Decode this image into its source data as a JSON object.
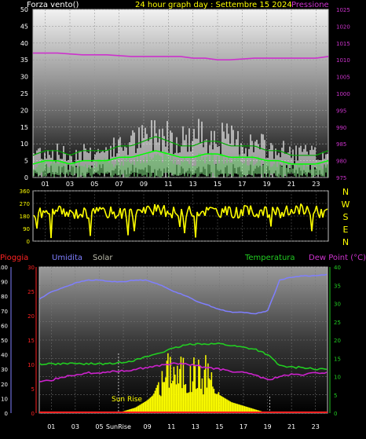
{
  "header": {
    "left_label": "Forza vento()",
    "title": "24 hour graph day : Settembre 15 2024",
    "right_label": "Pressione"
  },
  "panel2": {
    "compass_labels": [
      "N",
      "W",
      "S",
      "E",
      "N"
    ]
  },
  "panel3": {
    "legend": [
      "Pioggia",
      "Umidita",
      "Solar",
      "Temperatura",
      "Dew Point (°C)"
    ],
    "sunrise_label": "Sun Rise",
    "sunrise_hour_label": "SunRise"
  },
  "colors": {
    "wind_gust": "#ffffff",
    "wind_avg": "#00ff00",
    "pressure": "#cc33cc",
    "direction": "#ffff00",
    "humidity": "#7f7fff",
    "temperature": "#22cc22",
    "dewpoint": "#cc22cc",
    "solar": "#ffff00",
    "rain": "#ff2222"
  },
  "chart_data": [
    {
      "type": "line",
      "x_ticks": [
        "01",
        "03",
        "05",
        "07",
        "09",
        "11",
        "13",
        "15",
        "17",
        "19",
        "21",
        "23"
      ],
      "y_left_ticks": [
        "0",
        "5",
        "10",
        "15",
        "20",
        "25",
        "30",
        "35",
        "40",
        "45",
        "50"
      ],
      "y_right_ticks": [
        "975",
        "980",
        "985",
        "990",
        "995",
        "1000",
        "1005",
        "1010",
        "1015",
        "1020",
        "1025"
      ],
      "ylim_left": [
        0,
        50
      ],
      "ylim_right": [
        975,
        1025
      ],
      "xlim": [
        0,
        24
      ],
      "series": [
        {
          "name": "Forza vento()",
          "axis": "left",
          "kind": "gust",
          "x": [
            0,
            1,
            2,
            3,
            4,
            5,
            6,
            7,
            8,
            9,
            10,
            11,
            12,
            13,
            14,
            15,
            16,
            17,
            18,
            19,
            20,
            21,
            22,
            23,
            24
          ],
          "y": [
            9,
            10,
            9,
            8,
            10,
            9,
            10,
            11,
            13,
            14,
            17,
            16,
            14,
            15,
            16,
            15,
            14,
            13,
            12,
            11,
            10,
            9,
            9,
            8,
            9
          ]
        },
        {
          "name": "Forza vento()",
          "axis": "left",
          "kind": "avg",
          "x": [
            0,
            1,
            2,
            3,
            4,
            5,
            6,
            7,
            8,
            9,
            10,
            11,
            12,
            13,
            14,
            15,
            16,
            17,
            18,
            19,
            20,
            21,
            22,
            23,
            24
          ],
          "y": [
            4,
            5,
            5,
            4,
            5,
            5,
            5,
            6,
            6,
            7,
            8,
            7,
            6,
            6,
            7,
            7,
            6,
            6,
            6,
            5,
            5,
            4,
            4,
            4,
            5
          ]
        },
        {
          "name": "Pressione",
          "axis": "right",
          "x": [
            0,
            2,
            4,
            6,
            8,
            10,
            12,
            13,
            14,
            15,
            16,
            18,
            20,
            22,
            23,
            24
          ],
          "y": [
            1012,
            1012,
            1011.5,
            1011.5,
            1011,
            1011,
            1011,
            1010.5,
            1010.5,
            1010,
            1010,
            1010.5,
            1010.5,
            1010.5,
            1010.5,
            1011
          ]
        }
      ]
    },
    {
      "type": "scatter",
      "x_ticks": [
        "01",
        "03",
        "05",
        "07",
        "09",
        "11",
        "13",
        "15",
        "17",
        "19",
        "21",
        "23"
      ],
      "y_ticks": [
        "0",
        "90",
        "180",
        "270",
        "360"
      ],
      "ylim": [
        0,
        360
      ],
      "xlim": [
        0,
        24
      ],
      "series": [
        {
          "name": "direction",
          "x": [
            0,
            1,
            2,
            3,
            4,
            5,
            6,
            7,
            8,
            9,
            10,
            11,
            12,
            13,
            14,
            15,
            16,
            17,
            18,
            19,
            20,
            21,
            22,
            23,
            24
          ],
          "y": [
            190,
            200,
            210,
            195,
            205,
            200,
            210,
            200,
            205,
            215,
            220,
            210,
            200,
            210,
            220,
            215,
            205,
            210,
            215,
            205,
            200,
            215,
            230,
            215,
            200
          ]
        }
      ]
    },
    {
      "type": "line",
      "x_ticks": [
        "01",
        "03",
        "05",
        "07",
        "09",
        "11",
        "13",
        "15",
        "17",
        "19",
        "21",
        "23"
      ],
      "y_left_ticks": [
        "0",
        "10",
        "20",
        "30",
        "40",
        "50",
        "60",
        "70",
        "80",
        "90",
        "100"
      ],
      "y_mid_ticks": [
        "0",
        "5",
        "10",
        "15",
        "20",
        "25",
        "30"
      ],
      "y_right_ticks": [
        "0",
        "5",
        "10",
        "15",
        "20",
        "25",
        "30",
        "35",
        "40"
      ],
      "ylim_left": [
        0,
        100
      ],
      "ylim_mid": [
        0,
        30
      ],
      "ylim_right": [
        0,
        40
      ],
      "xlim": [
        0,
        24
      ],
      "series": [
        {
          "name": "Umidita",
          "axis": "left",
          "x": [
            0,
            1,
            2,
            3,
            4,
            5,
            6,
            7,
            8,
            9,
            10,
            11,
            12,
            13,
            14,
            15,
            16,
            17,
            18,
            19,
            19.5,
            20,
            21,
            22,
            23,
            24
          ],
          "y": [
            78,
            83,
            86,
            89,
            91,
            91,
            90,
            90,
            91,
            91,
            88,
            84,
            81,
            77,
            74,
            71,
            69,
            69,
            68,
            70,
            80,
            91,
            93,
            94,
            94,
            95
          ]
        },
        {
          "name": "Temperatura",
          "axis": "right",
          "x": [
            0,
            1,
            2,
            3,
            4,
            5,
            6,
            7,
            8,
            9,
            10,
            11,
            12,
            13,
            14,
            15,
            16,
            17,
            18,
            19,
            20,
            21,
            22,
            23,
            24
          ],
          "y": [
            13.5,
            13.5,
            13.5,
            13.5,
            13.5,
            13.5,
            13.5,
            14,
            14.5,
            15.5,
            16.5,
            17.5,
            18.5,
            19,
            19,
            19,
            18.5,
            18,
            17.5,
            16,
            13,
            12.5,
            12.5,
            12,
            12
          ]
        },
        {
          "name": "Dew Point (°C)",
          "axis": "right",
          "x": [
            0,
            1,
            2,
            3,
            4,
            5,
            6,
            7,
            8,
            9,
            10,
            11,
            12,
            13,
            14,
            15,
            16,
            17,
            18,
            19,
            20,
            21,
            22,
            23,
            24
          ],
          "y": [
            8.5,
            9,
            10,
            10.5,
            11,
            11,
            11.5,
            11.5,
            12,
            12.5,
            13,
            13.5,
            13.5,
            13,
            12.5,
            12,
            11.5,
            11,
            10.5,
            9,
            10,
            10.5,
            10.5,
            11,
            11
          ]
        },
        {
          "name": "Solar",
          "axis": "right",
          "x": [
            6.5,
            7,
            8,
            9,
            9.5,
            10,
            10.5,
            11,
            11.5,
            12,
            12.5,
            13,
            13.5,
            14,
            14.5,
            15,
            16,
            17,
            18,
            19
          ],
          "y": [
            0,
            0.5,
            1.5,
            3.5,
            5,
            9,
            14,
            18,
            13,
            16,
            11,
            17,
            12,
            17,
            10,
            5,
            3,
            2,
            1,
            0
          ]
        },
        {
          "name": "Pioggia",
          "axis": "mid",
          "x": [
            0,
            24
          ],
          "y": [
            0,
            0
          ]
        }
      ]
    }
  ]
}
